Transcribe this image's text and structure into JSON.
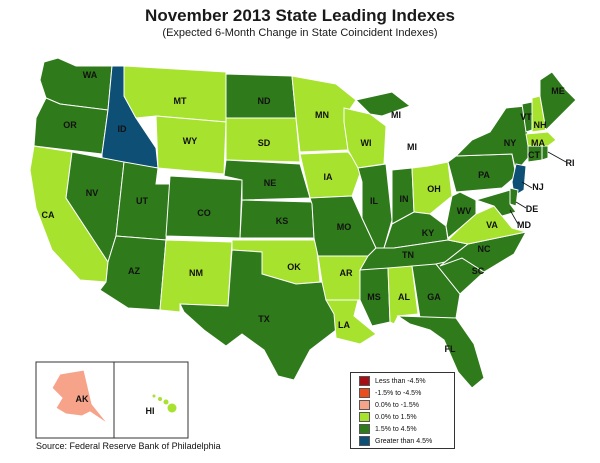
{
  "title": "November 2013 State Leading Indexes",
  "subtitle": "(Expected 6-Month Change in State Coincident Indexes)",
  "source": "Source: Federal Reserve Bank of Philadelphia",
  "legend": [
    {
      "label": "Less than -4.5%",
      "color": "#a50f15"
    },
    {
      "label": "-1.5% to -4.5%",
      "color": "#ea4e1c"
    },
    {
      "label": "0.0% to -1.5%",
      "color": "#f7a38a"
    },
    {
      "label": "0.0% to  1.5%",
      "color": "#a6e22e"
    },
    {
      "label": "1.5% to  4.5%",
      "color": "#2f7a1a"
    },
    {
      "label": "Greater than 4.5%",
      "color": "#0d4f75"
    }
  ],
  "states": {
    "WA": "1.5% to  4.5%",
    "OR": "1.5% to  4.5%",
    "CA": "0.0% to  1.5%",
    "ID": "Greater than 4.5%",
    "NV": "1.5% to  4.5%",
    "MT": "0.0% to  1.5%",
    "WY": "0.0% to  1.5%",
    "UT": "1.5% to  4.5%",
    "AZ": "1.5% to  4.5%",
    "CO": "1.5% to  4.5%",
    "NM": "0.0% to  1.5%",
    "ND": "1.5% to  4.5%",
    "SD": "0.0% to  1.5%",
    "NE": "1.5% to  4.5%",
    "KS": "1.5% to  4.5%",
    "OK": "0.0% to  1.5%",
    "TX": "1.5% to  4.5%",
    "MN": "0.0% to  1.5%",
    "IA": "0.0% to  1.5%",
    "MO": "1.5% to  4.5%",
    "AR": "0.0% to  1.5%",
    "LA": "0.0% to  1.5%",
    "WI": "0.0% to  1.5%",
    "IL": "1.5% to  4.5%",
    "MI": "1.5% to  4.5%",
    "IN": "1.5% to  4.5%",
    "OH": "0.0% to  1.5%",
    "KY": "1.5% to  4.5%",
    "TN": "1.5% to  4.5%",
    "MS": "1.5% to  4.5%",
    "AL": "0.0% to  1.5%",
    "GA": "1.5% to  4.5%",
    "FL": "1.5% to  4.5%",
    "SC": "1.5% to  4.5%",
    "NC": "1.5% to  4.5%",
    "VA": "0.0% to  1.5%",
    "WV": "1.5% to  4.5%",
    "PA": "1.5% to  4.5%",
    "NY": "1.5% to  4.5%",
    "VT": "1.5% to  4.5%",
    "NH": "0.0% to  1.5%",
    "ME": "1.5% to  4.5%",
    "MA": "0.0% to  1.5%",
    "CT": "1.5% to  4.5%",
    "RI": "1.5% to  4.5%",
    "NJ": "Greater than 4.5%",
    "DE": "1.5% to  4.5%",
    "MD": "1.5% to  4.5%",
    "AK": "0.0% to -1.5%",
    "HI": "0.0% to  1.5%"
  }
}
